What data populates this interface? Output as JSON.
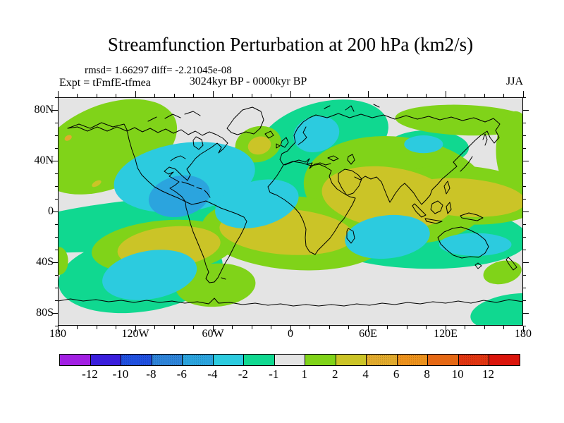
{
  "header": {
    "title": "Streamfunction Perturbation at 200 hPa (km2/s)",
    "stats": "rmsd= 1.66297 diff= -2.21045e-08",
    "experiment": "Expt = tFmfE-tfmea",
    "period": "3024kyr BP - 0000kyr BP",
    "season": "JJA"
  },
  "map": {
    "lat_ticks": [
      "80N",
      "40N",
      "0",
      "40S",
      "80S"
    ],
    "lon_ticks": [
      "180",
      "120W",
      "60W",
      "0",
      "60E",
      "120E",
      "180"
    ],
    "background": "#E4E4E4",
    "coastline_color": "#000000"
  },
  "colorbar": {
    "tick_labels": [
      "-12",
      "-10",
      "-8",
      "-6",
      "-4",
      "-2",
      "-1",
      "1",
      "2",
      "4",
      "6",
      "8",
      "10",
      "12"
    ],
    "colors": [
      "#A21FE3",
      "#3A1EDC",
      "#2050E0",
      "#2E84D9",
      "#2BA4DE",
      "#2CCBDF",
      "#10D890",
      "#E4E4E4",
      "#80D319",
      "#CBC427",
      "#E2AB2D",
      "#ED921C",
      "#E56814",
      "#E13511",
      "#DB150C"
    ],
    "dotted_segments": [
      2,
      3,
      4,
      10,
      11,
      13
    ]
  },
  "chart_data": {
    "type": "filled_contour_map",
    "title": "Streamfunction Perturbation at 200 hPa (km2/s)",
    "variable": "Streamfunction Perturbation",
    "pressure_level_hPa": 200,
    "units": "km2/s",
    "season": "JJA",
    "experiment": "tFmfE-tfmea",
    "difference": "3024kyr BP - 0000kyr BP",
    "rmsd": 1.66297,
    "diff": -2.21045e-08,
    "projection": "equirectangular",
    "lon_range": [
      -180,
      180
    ],
    "lat_range": [
      -90,
      90
    ],
    "lon_major_ticks_deg": [
      -180,
      -120,
      -60,
      0,
      60,
      120,
      180
    ],
    "lat_major_ticks_deg": [
      80,
      40,
      0,
      -40,
      -80
    ],
    "contour_levels": [
      -12,
      -10,
      -8,
      -6,
      -4,
      -2,
      -1,
      1,
      2,
      4,
      6,
      8,
      10,
      12
    ],
    "anomaly_regions": [
      {
        "name": "north-america",
        "band": "-2..-1",
        "color_index": 6,
        "lon": -52,
        "lat": 15,
        "rlon": 75,
        "rlat": 34,
        "rot": -10
      },
      {
        "name": "equatorial-pacific",
        "band": "-2..-1",
        "color_index": 6,
        "lon": -120,
        "lat": -10,
        "rlon": 112,
        "rlat": 19,
        "rot": -6
      },
      {
        "name": "tropical-atlantic",
        "band": "-2..-1",
        "color_index": 6,
        "lon": -16,
        "lat": 4,
        "rlon": 46,
        "rlat": 29,
        "rot": -14
      },
      {
        "name": "scandinavia",
        "band": "-2..-1",
        "color_index": 6,
        "lon": 25,
        "lat": 57,
        "rlon": 52,
        "rlat": 29,
        "rot": -15
      },
      {
        "name": "mongolia",
        "band": "-2..-1",
        "color_index": 6,
        "lon": 106,
        "lat": 50,
        "rlon": 32,
        "rlat": 14,
        "rot": 0
      },
      {
        "name": "indian-ocean-australia",
        "band": "-2..-1",
        "color_index": 6,
        "lon": 99,
        "lat": -19,
        "rlon": 85,
        "rlat": 26,
        "rot": 2
      },
      {
        "name": "south-pacific",
        "band": "-2..-1",
        "color_index": 6,
        "lon": -116,
        "lat": -49,
        "rlon": 64,
        "rlat": 30,
        "rot": -8
      },
      {
        "name": "southeast-antarctic",
        "band": "-2..-1",
        "color_index": 6,
        "lon": 172,
        "lat": -79,
        "rlon": 33,
        "rlat": 14,
        "rot": -8
      },
      {
        "name": "gulf-of-alaska",
        "band": "1..2",
        "color_index": 8,
        "lon": -142,
        "lat": 51,
        "rlon": 57,
        "rlat": 33,
        "rot": -22
      },
      {
        "name": "south-of-iceland",
        "band": "1..2",
        "color_index": 8,
        "lon": -25,
        "lat": 53,
        "rlon": 18,
        "rlat": 14,
        "rot": -15
      },
      {
        "name": "africa-mideast-india",
        "band": "1..2",
        "color_index": 8,
        "lon": 82,
        "lat": 17,
        "rlon": 72,
        "rlat": 42,
        "rot": 6
      },
      {
        "name": "china-japan",
        "band": "1..2",
        "color_index": 8,
        "lon": 134,
        "lat": 13,
        "rlon": 61,
        "rlat": 23,
        "rot": 4
      },
      {
        "name": "siberia",
        "band": "1..2",
        "color_index": 8,
        "lon": 134,
        "lat": 72,
        "rlon": 53,
        "rlat": 12,
        "rot": 2
      },
      {
        "name": "northeast-pacific-rim",
        "band": "1..2",
        "color_index": 8,
        "lon": 174,
        "lat": 48,
        "rlon": 15,
        "rlat": 31,
        "rot": 0
      },
      {
        "name": "south-atlantic-africa",
        "band": "1..2",
        "color_index": 8,
        "lon": 3,
        "lat": -17,
        "rlon": 72,
        "rlat": 29,
        "rot": 4
      },
      {
        "name": "southeast-pacific",
        "band": "1..2",
        "color_index": 8,
        "lon": -98,
        "lat": -28,
        "rlon": 56,
        "rlat": 21,
        "rot": -5
      },
      {
        "name": "patagonia",
        "band": "1..2",
        "color_index": 8,
        "lon": -58,
        "lat": -58,
        "rlon": 31,
        "rlat": 17,
        "rot": -4
      },
      {
        "name": "new-zealand",
        "band": "1..2",
        "color_index": 8,
        "lon": 164,
        "lat": -48,
        "rlon": 15,
        "rlat": 9,
        "rot": -12
      },
      {
        "name": "dateline-40s",
        "band": "1..2",
        "color_index": 8,
        "lon": -179,
        "lat": -39,
        "rlon": 7,
        "rlat": 11,
        "rot": 0
      },
      {
        "name": "south-of-iceland-core",
        "band": "2..4",
        "color_index": 9,
        "lon": -24,
        "lat": 52,
        "rlon": 9,
        "rlat": 7,
        "rot": -15
      },
      {
        "name": "mideast-india-core",
        "band": "2..4",
        "color_index": 9,
        "lon": 75,
        "lat": 11,
        "rlon": 51,
        "rlat": 24,
        "rot": 7
      },
      {
        "name": "china-japan-core",
        "band": "2..4",
        "color_index": 9,
        "lon": 134,
        "lat": 11,
        "rlon": 48,
        "rlat": 15,
        "rot": 4
      },
      {
        "name": "south-atlantic-core",
        "band": "2..4",
        "color_index": 9,
        "lon": -3,
        "lat": -16,
        "rlon": 52,
        "rlat": 18,
        "rot": 4
      },
      {
        "name": "southeast-pacific-core",
        "band": "2..4",
        "color_index": 9,
        "lon": -94,
        "lat": -28,
        "rlon": 40,
        "rlat": 16,
        "rot": -6
      },
      {
        "name": "northeast-pacific-speck",
        "band": "2..4",
        "color_index": 9,
        "lon": -150,
        "lat": 22,
        "rlon": 4,
        "rlat": 2,
        "rot": -30
      },
      {
        "name": "mexico-caribbean",
        "band": "-4..-2",
        "color_index": 5,
        "lon": -82,
        "lat": 27,
        "rlon": 55,
        "rlat": 27,
        "rot": -8
      },
      {
        "name": "tropical-atlantic-core",
        "band": "-4..-2",
        "color_index": 5,
        "lon": -26,
        "lat": 6,
        "rlon": 33,
        "rlat": 18,
        "rot": -14
      },
      {
        "name": "scandinavia-core",
        "band": "-4..-2",
        "color_index": 5,
        "lon": 20,
        "lat": 61,
        "rlon": 18,
        "rlat": 14,
        "rot": -15
      },
      {
        "name": "mongolia-core",
        "band": "-4..-2",
        "color_index": 5,
        "lon": 103,
        "lat": 53,
        "rlon": 15,
        "rlat": 7,
        "rot": 0
      },
      {
        "name": "madagascar-indian-ocean",
        "band": "-4..-2",
        "color_index": 5,
        "lon": 75,
        "lat": -20,
        "rlon": 33,
        "rlat": 17,
        "rot": -6
      },
      {
        "name": "australia-core",
        "band": "-4..-2",
        "color_index": 5,
        "lon": 143,
        "lat": -26,
        "rlon": 28,
        "rlat": 9,
        "rot": 0
      },
      {
        "name": "south-pacific-core",
        "band": "-4..-2",
        "color_index": 5,
        "lon": -109,
        "lat": -50,
        "rlon": 37,
        "rlat": 19,
        "rot": -10
      },
      {
        "name": "mexico-gulf-core",
        "band": "-6..-4",
        "color_index": 4,
        "lon": -86,
        "lat": 12,
        "rlon": 24,
        "rlat": 16,
        "rot": -12
      },
      {
        "name": "bering-speck",
        "band": "4..6",
        "color_index": 10,
        "lon": -172,
        "lat": 58,
        "rlon": 3,
        "rlat": 2,
        "rot": -30
      }
    ]
  }
}
